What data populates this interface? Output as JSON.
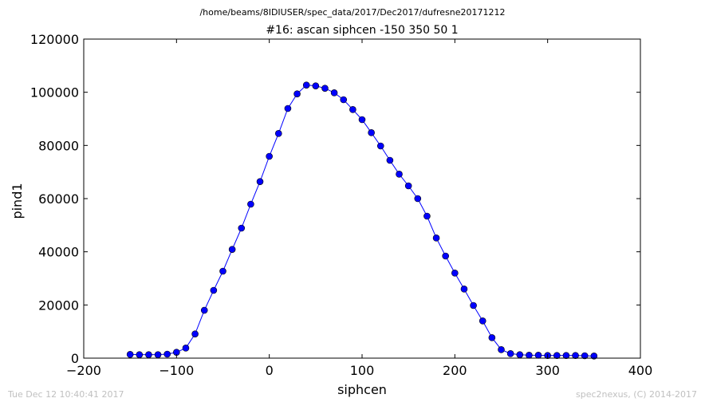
{
  "header": {
    "suptitle": "/home/beams/8IDIUSER/spec_data/2017/Dec2017/dufresne20171212",
    "title": "#16: ascan  siphcen -150 350  50 1"
  },
  "footer": {
    "timestamp": "Tue Dec 12 10:40:41 2017",
    "credit": "spec2nexus, (C) 2014-2017"
  },
  "chart_data": {
    "type": "line",
    "xlabel": "siphcen",
    "ylabel": "pind1",
    "xlim": [
      -200,
      400
    ],
    "ylim": [
      0,
      120000
    ],
    "xticks": [
      -200,
      -100,
      0,
      100,
      200,
      300,
      400
    ],
    "yticks": [
      0,
      20000,
      40000,
      60000,
      80000,
      100000,
      120000
    ],
    "xtick_labels": [
      "−200",
      "−100",
      "0",
      "100",
      "200",
      "300",
      "400"
    ],
    "ytick_labels": [
      "0",
      "20000",
      "40000",
      "60000",
      "80000",
      "100000",
      "120000"
    ],
    "grid": false,
    "series_color": "#0000ff",
    "marker_color": "#0000ff",
    "series": [
      {
        "x": [
          -150,
          -140,
          -130,
          -120,
          -110,
          -100,
          -90,
          -80,
          -70,
          -60,
          -50,
          -40,
          -30,
          -20,
          -10,
          0,
          10,
          20,
          30,
          40,
          50,
          60,
          70,
          80,
          90,
          100,
          110,
          120,
          130,
          140,
          150,
          160,
          170,
          180,
          190,
          200,
          210,
          220,
          230,
          240,
          250,
          260,
          270,
          280,
          290,
          300,
          310,
          320,
          330,
          340,
          350
        ],
        "y": [
          1400,
          1300,
          1300,
          1300,
          1500,
          2200,
          3800,
          9100,
          18000,
          25500,
          32700,
          40900,
          48900,
          57900,
          66400,
          75900,
          84500,
          93900,
          99400,
          102700,
          102400,
          101500,
          99800,
          97200,
          93500,
          89700,
          84800,
          79800,
          74400,
          69200,
          64800,
          60000,
          53400,
          45200,
          38400,
          32000,
          26000,
          19800,
          14000,
          7700,
          3200,
          1700,
          1300,
          1100,
          1100,
          1000,
          1000,
          1000,
          1000,
          900,
          800
        ]
      }
    ]
  }
}
